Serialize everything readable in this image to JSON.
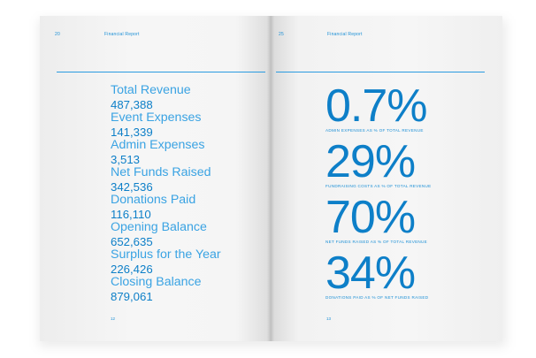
{
  "left_page": {
    "header": {
      "number": "20",
      "title": "Financial Report"
    },
    "items": [
      {
        "label": "Total Revenue",
        "value": "487,388"
      },
      {
        "label": "Event Expenses",
        "value": "141,339"
      },
      {
        "label": "Admin Expenses",
        "value": "3,513"
      },
      {
        "label": "Net Funds Raised",
        "value": "342,536"
      },
      {
        "label": "Donations Paid",
        "value": "116,110"
      },
      {
        "label": "Opening Balance",
        "value": "652,635"
      },
      {
        "label": "Surplus for the Year",
        "value": "226,426"
      },
      {
        "label": "Closing Balance",
        "value": "879,061"
      }
    ],
    "footer_number": "12"
  },
  "right_page": {
    "header": {
      "number": "25",
      "title": "Financial Report"
    },
    "stats": [
      {
        "value": "0.7%",
        "caption": "ADMIN EXPENSES AS % OF TOTAL REVENUE"
      },
      {
        "value": "29%",
        "caption": "FUNDRAISING COSTS AS % OF TOTAL REVENUE"
      },
      {
        "value": "70%",
        "caption": "NET FUNDS RAISED AS % OF TOTAL REVENUE"
      },
      {
        "value": "34%",
        "caption": "DONATIONS PAID AS % OF NET FUNDS RAISED"
      }
    ],
    "footer_number": "13"
  },
  "colors": {
    "accent": "#0d7fc8",
    "accent_light": "#3aa3e3",
    "paper": "#f5f5f5"
  }
}
